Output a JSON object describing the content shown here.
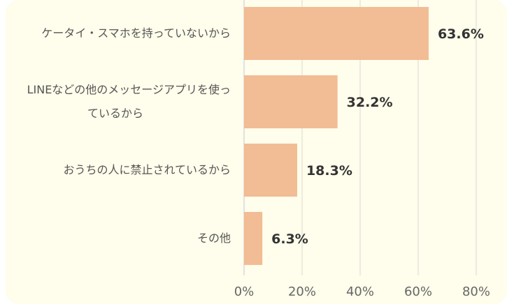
{
  "chart_data": {
    "type": "bar",
    "orientation": "horizontal",
    "categories": [
      "ケータイ・スマホを持っていないから",
      "LINEなどの他のメッセージアプリを使っているから",
      "おうちの人に禁止されているから",
      "その他"
    ],
    "category_lines": [
      [
        "ケータイ・スマホを持っていないから"
      ],
      [
        "LINEなどの他のメッセージアプリを使っ",
        "ているから"
      ],
      [
        "おうちの人に禁止されているから"
      ],
      [
        "その他"
      ]
    ],
    "values": [
      63.6,
      32.2,
      18.3,
      6.3
    ],
    "value_labels": [
      "63.6%",
      "32.2%",
      "18.3%",
      "6.3%"
    ],
    "xlim": [
      0,
      80
    ],
    "xticks": [
      0,
      20,
      40,
      60,
      80
    ],
    "xtick_labels": [
      "0%",
      "20%",
      "40%",
      "60%",
      "80%"
    ],
    "grid": true,
    "bar_color": "#f2bc94",
    "grid_color": "#d9d9d9",
    "label_color": "#555555",
    "value_color": "#333333"
  }
}
